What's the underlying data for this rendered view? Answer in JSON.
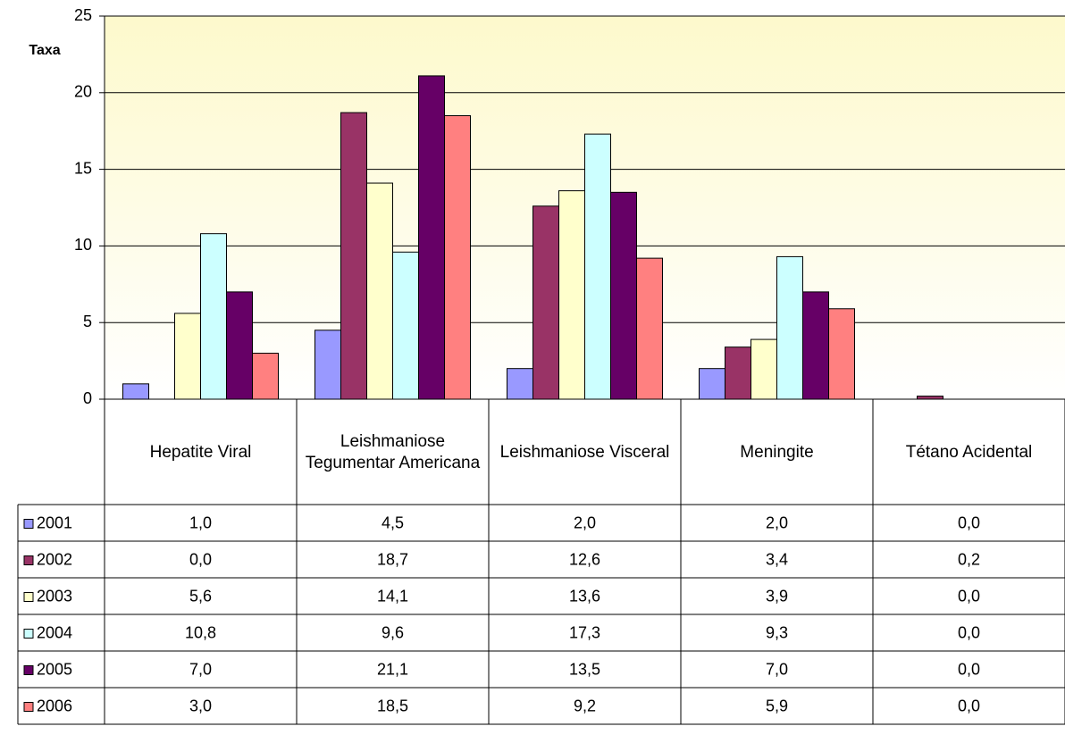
{
  "chart_data": {
    "type": "bar",
    "y_label": "Taxa",
    "categories": [
      "Hepatite Viral",
      "Leishmaniose Tegumentar Americana",
      "Leishmaniose Visceral",
      "Meningite",
      "Tétano Acidental"
    ],
    "ylim": [
      0,
      25
    ],
    "yticks": [
      0,
      5,
      10,
      15,
      20,
      25
    ],
    "grid": true,
    "series": [
      {
        "name": "2001",
        "color": "#9999ff",
        "values": [
          1.0,
          4.5,
          2.0,
          2.0,
          0.0
        ],
        "value_labels": [
          "1,0",
          "4,5",
          "2,0",
          "2,0",
          "0,0"
        ]
      },
      {
        "name": "2002",
        "color": "#993366",
        "values": [
          0.0,
          18.7,
          12.6,
          3.4,
          0.2
        ],
        "value_labels": [
          "0,0",
          "18,7",
          "12,6",
          "3,4",
          "0,2"
        ]
      },
      {
        "name": "2003",
        "color": "#ffffcc",
        "values": [
          5.6,
          14.1,
          13.6,
          3.9,
          0.0
        ],
        "value_labels": [
          "5,6",
          "14,1",
          "13,6",
          "3,9",
          "0,0"
        ]
      },
      {
        "name": "2004",
        "color": "#ccffff",
        "values": [
          10.8,
          9.6,
          17.3,
          9.3,
          0.0
        ],
        "value_labels": [
          "10,8",
          "9,6",
          "17,3",
          "9,3",
          "0,0"
        ]
      },
      {
        "name": "2005",
        "color": "#660066",
        "values": [
          7.0,
          21.1,
          13.5,
          7.0,
          0.0
        ],
        "value_labels": [
          "7,0",
          "21,1",
          "13,5",
          "7,0",
          "0,0"
        ]
      },
      {
        "name": "2006",
        "color": "#ff8080",
        "values": [
          3.0,
          18.5,
          9.2,
          5.9,
          0.0
        ],
        "value_labels": [
          "3,0",
          "18,5",
          "9,2",
          "5,9",
          "0,0"
        ]
      }
    ]
  }
}
